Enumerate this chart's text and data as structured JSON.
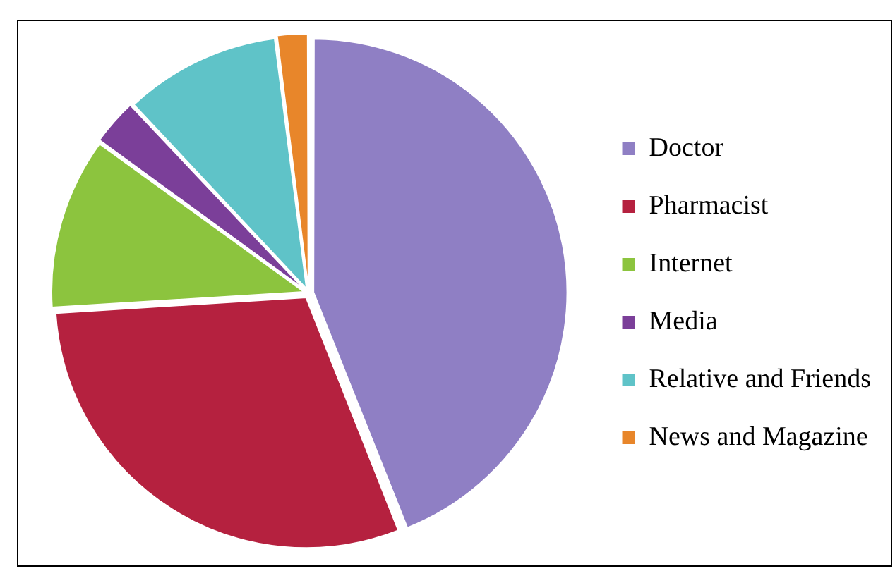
{
  "chart_data": {
    "type": "pie",
    "categories": [
      "Doctor",
      "Pharmacist",
      "Internet",
      "Media",
      "Relative and Friends",
      "News and Magazine"
    ],
    "values": [
      44,
      30,
      11,
      3,
      10,
      2
    ],
    "colors": [
      "#8f7fc4",
      "#b5213f",
      "#8cc43e",
      "#7b3f99",
      "#5fc3c8",
      "#e8862a"
    ],
    "legend": "right"
  }
}
